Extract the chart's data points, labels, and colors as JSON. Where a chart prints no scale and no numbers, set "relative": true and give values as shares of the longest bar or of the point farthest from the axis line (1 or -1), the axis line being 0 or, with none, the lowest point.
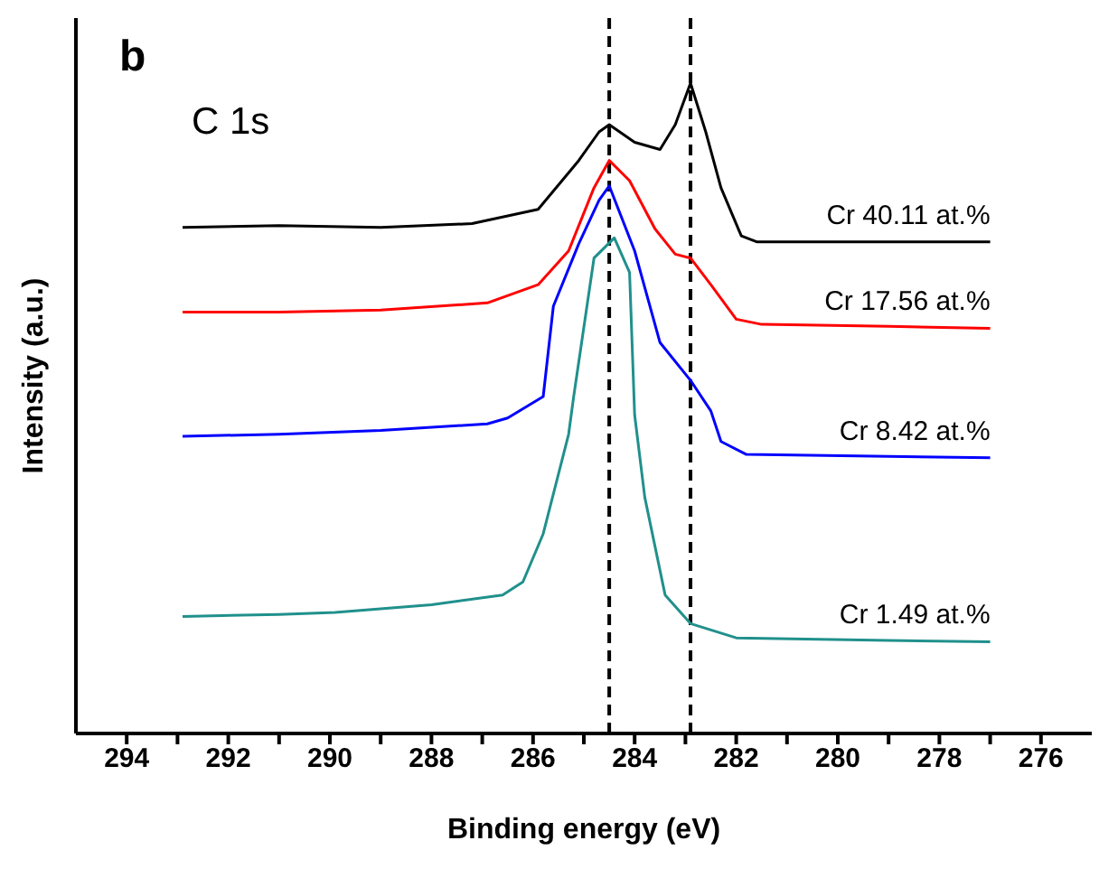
{
  "chart_data": {
    "type": "line",
    "xlabel": "Binding energy (eV)",
    "ylabel": "Intensity (a.u.)",
    "annotations": [
      "b",
      "C 1s"
    ],
    "relative": true,
    "xlim": [
      295,
      275
    ],
    "xticks": [
      294,
      {
        "value": 293,
        "label": null
      },
      292,
      {
        "value": 291,
        "label": null
      },
      290,
      {
        "value": 289,
        "label": null
      },
      288,
      {
        "value": 287,
        "label": null
      },
      286,
      {
        "value": 285,
        "label": null
      },
      284,
      {
        "value": 283,
        "label": null
      },
      282,
      {
        "value": 281,
        "label": null
      },
      280,
      {
        "value": 279,
        "label": null
      },
      278,
      {
        "value": 277,
        "label": null
      },
      276
    ],
    "marker": "none",
    "line_style": "solid",
    "series": [
      {
        "name": "Cr 40.11 at.%",
        "color": "#000000",
        "x": [
          292.9,
          291,
          289,
          287.2,
          285.9,
          285.1,
          284.7,
          284.5,
          284.0,
          283.5,
          283.2,
          282.9,
          282.6,
          282.3,
          281.9,
          281.6,
          279,
          277.0
        ],
        "values": [
          0.778,
          0.781,
          0.778,
          0.784,
          0.806,
          0.881,
          0.925,
          0.936,
          0.909,
          0.898,
          0.936,
          1.0,
          0.925,
          0.839,
          0.765,
          0.756,
          0.756,
          0.756
        ]
      },
      {
        "name": "Cr 17.56 at.%",
        "color": "#ff0000",
        "x": [
          292.9,
          291,
          289,
          286.9,
          285.9,
          285.3,
          284.8,
          284.5,
          284.1,
          283.6,
          283.2,
          282.9,
          282.5,
          282.0,
          281.5,
          279,
          277.0
        ],
        "values": [
          0.648,
          0.648,
          0.651,
          0.662,
          0.69,
          0.742,
          0.839,
          0.881,
          0.85,
          0.776,
          0.737,
          0.731,
          0.69,
          0.637,
          0.629,
          0.626,
          0.623
        ]
      },
      {
        "name": "Cr 8.42 at.%",
        "color": "#0000ff",
        "x": [
          292.9,
          291,
          289,
          286.9,
          286.5,
          285.8,
          285.6,
          285.1,
          284.7,
          284.5,
          284.0,
          283.5,
          282.9,
          282.5,
          282.3,
          281.8,
          279,
          277.0
        ],
        "values": [
          0.457,
          0.46,
          0.466,
          0.476,
          0.485,
          0.518,
          0.657,
          0.753,
          0.82,
          0.842,
          0.742,
          0.601,
          0.543,
          0.496,
          0.449,
          0.429,
          0.426,
          0.424
        ]
      },
      {
        "name": "Cr 1.49 at.%",
        "color": "#20908c",
        "x": [
          292.9,
          291,
          289.9,
          288,
          286.6,
          286.2,
          285.8,
          285.3,
          285.2,
          284.8,
          284.4,
          284.1,
          284.0,
          283.8,
          283.4,
          282.9,
          282.0,
          279,
          277.0
        ],
        "values": [
          0.18,
          0.183,
          0.186,
          0.198,
          0.213,
          0.233,
          0.307,
          0.46,
          0.518,
          0.731,
          0.762,
          0.709,
          0.49,
          0.363,
          0.213,
          0.169,
          0.147,
          0.143,
          0.141
        ]
      }
    ],
    "ref_lines": [
      {
        "axis": "x",
        "value": 284.5,
        "color": "#000000",
        "line_style": "dashed"
      },
      {
        "axis": "x",
        "value": 282.9,
        "color": "#000000",
        "line_style": "dashed"
      }
    ]
  }
}
